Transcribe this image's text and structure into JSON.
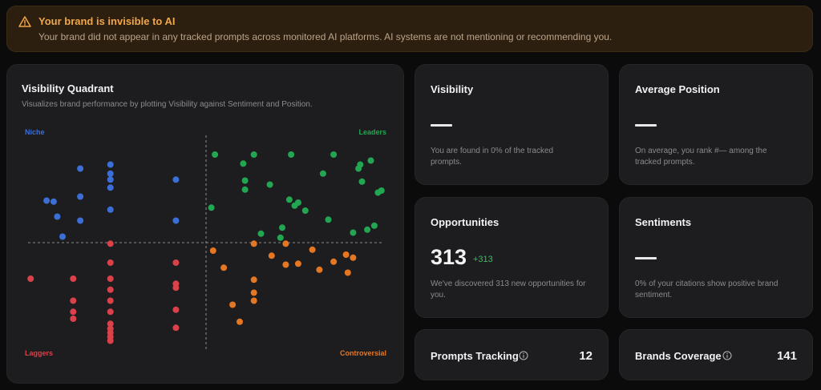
{
  "banner": {
    "icon": "warning-icon",
    "title": "Your brand is invisible to AI",
    "description": "Your brand did not appear in any tracked prompts across monitored AI platforms. AI systems are not mentioning or recommending you.",
    "accent_color": "#f0a64a"
  },
  "quadrant": {
    "title": "Visibility Quadrant",
    "description": "Visualizes brand performance by plotting Visibility against Sentiment and Position.",
    "labels": {
      "niche": "Niche",
      "leaders": "Leaders",
      "laggers": "Laggers",
      "controversial": "Controversial"
    },
    "colors": {
      "niche": "#3b6fd6",
      "leaders": "#22a652",
      "laggers": "#d9424a",
      "controversial": "#e67722"
    },
    "chart_data": {
      "type": "scatter",
      "x_axis": "Visibility",
      "y_axis": "Sentiment / Position",
      "xlim": [
        -1,
        1
      ],
      "ylim": [
        -1,
        1
      ],
      "grid": false,
      "series": [
        {
          "name": "Niche",
          "points": [
            [
              -0.9,
              0.42
            ],
            [
              -0.86,
              0.41
            ],
            [
              -0.84,
              0.26
            ],
            [
              -0.81,
              0.06
            ],
            [
              -0.71,
              0.74
            ],
            [
              -0.71,
              0.46
            ],
            [
              -0.71,
              0.22
            ],
            [
              -0.54,
              0.78
            ],
            [
              -0.54,
              0.69
            ],
            [
              -0.54,
              0.63
            ],
            [
              -0.54,
              0.55
            ],
            [
              -0.54,
              0.33
            ],
            [
              -0.17,
              0.63
            ],
            [
              -0.17,
              0.22
            ]
          ]
        },
        {
          "name": "Leaders",
          "points": [
            [
              0.03,
              0.35
            ],
            [
              0.05,
              0.88
            ],
            [
              0.21,
              0.79
            ],
            [
              0.22,
              0.62
            ],
            [
              0.22,
              0.53
            ],
            [
              0.27,
              0.88
            ],
            [
              0.31,
              0.09
            ],
            [
              0.36,
              0.58
            ],
            [
              0.42,
              0.05
            ],
            [
              0.43,
              0.15
            ],
            [
              0.47,
              0.43
            ],
            [
              0.48,
              0.88
            ],
            [
              0.5,
              0.37
            ],
            [
              0.52,
              0.4
            ],
            [
              0.56,
              0.32
            ],
            [
              0.66,
              0.69
            ],
            [
              0.69,
              0.23
            ],
            [
              0.72,
              0.88
            ],
            [
              0.83,
              0.1
            ],
            [
              0.86,
              0.74
            ],
            [
              0.87,
              0.78
            ],
            [
              0.88,
              0.61
            ],
            [
              0.91,
              0.13
            ],
            [
              0.93,
              0.82
            ],
            [
              0.95,
              0.17
            ],
            [
              0.97,
              0.5
            ],
            [
              0.99,
              0.52
            ]
          ]
        },
        {
          "name": "Controversial",
          "points": [
            [
              0.04,
              -0.08
            ],
            [
              0.1,
              -0.25
            ],
            [
              0.15,
              -0.62
            ],
            [
              0.19,
              -0.79
            ],
            [
              0.27,
              -0.5
            ],
            [
              0.27,
              -0.37
            ],
            [
              0.27,
              -0.01
            ],
            [
              0.27,
              -0.58
            ],
            [
              0.37,
              -0.13
            ],
            [
              0.45,
              -0.22
            ],
            [
              0.45,
              -0.01
            ],
            [
              0.52,
              -0.21
            ],
            [
              0.6,
              -0.07
            ],
            [
              0.64,
              -0.27
            ],
            [
              0.72,
              -0.19
            ],
            [
              0.79,
              -0.12
            ],
            [
              0.8,
              -0.3
            ],
            [
              0.83,
              -0.15
            ]
          ]
        },
        {
          "name": "Laggers",
          "points": [
            [
              -0.99,
              -0.36
            ],
            [
              -0.75,
              -0.36
            ],
            [
              -0.75,
              -0.58
            ],
            [
              -0.75,
              -0.69
            ],
            [
              -0.75,
              -0.76
            ],
            [
              -0.54,
              -0.01
            ],
            [
              -0.54,
              -0.2
            ],
            [
              -0.54,
              -0.36
            ],
            [
              -0.54,
              -0.47
            ],
            [
              -0.54,
              -0.58
            ],
            [
              -0.54,
              -0.69
            ],
            [
              -0.54,
              -0.81
            ],
            [
              -0.54,
              -0.86
            ],
            [
              -0.54,
              -0.9
            ],
            [
              -0.54,
              -0.94
            ],
            [
              -0.54,
              -0.98
            ],
            [
              -0.17,
              -0.2
            ],
            [
              -0.17,
              -0.41
            ],
            [
              -0.17,
              -0.45
            ],
            [
              -0.17,
              -0.67
            ],
            [
              -0.17,
              -0.85
            ]
          ]
        }
      ]
    }
  },
  "visibility": {
    "title": "Visibility",
    "value": "—",
    "description": "You are found in 0% of the tracked prompts."
  },
  "average_position": {
    "title": "Average Position",
    "value": "—",
    "description": "On average, you rank #— among the tracked prompts."
  },
  "opportunities": {
    "title": "Opportunities",
    "value": "313",
    "delta": "+313",
    "description": "We've discovered 313 new opportunities for you."
  },
  "sentiments": {
    "title": "Sentiments",
    "value": "—",
    "description": "0% of your citations show positive brand sentiment."
  },
  "prompts_tracking": {
    "label": "Prompts Tracking",
    "value": "12",
    "icon": "info-icon"
  },
  "brands_coverage": {
    "label": "Brands Coverage",
    "value": "141",
    "icon": "info-icon"
  }
}
